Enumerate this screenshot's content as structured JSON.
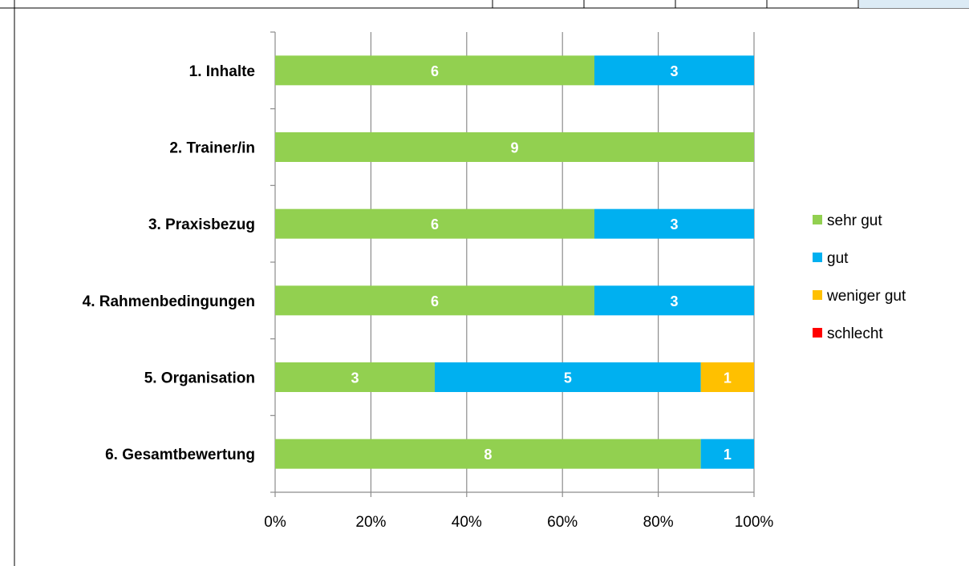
{
  "chart_data": {
    "type": "bar",
    "orientation": "horizontal",
    "stacked": "percent",
    "categories": [
      "1. Inhalte",
      "2. Trainer/in",
      "3. Praxisbezug",
      "4. Rahmenbedingungen",
      "5. Organisation",
      "6. Gesamtbewertung"
    ],
    "series": [
      {
        "name": "sehr gut",
        "color": "#92D050",
        "values": [
          6,
          9,
          6,
          6,
          3,
          8
        ]
      },
      {
        "name": "gut",
        "color": "#00B0F0",
        "values": [
          3,
          0,
          3,
          3,
          5,
          1
        ]
      },
      {
        "name": "weniger gut",
        "color": "#FFC000",
        "values": [
          0,
          0,
          0,
          0,
          1,
          0
        ]
      },
      {
        "name": "schlecht",
        "color": "#FF0000",
        "values": [
          0,
          0,
          0,
          0,
          0,
          0
        ]
      }
    ],
    "xticks": [
      "0%",
      "20%",
      "40%",
      "60%",
      "80%",
      "100%"
    ],
    "xlim": [
      0,
      100
    ],
    "grid": "vertical",
    "legend_position": "right"
  }
}
